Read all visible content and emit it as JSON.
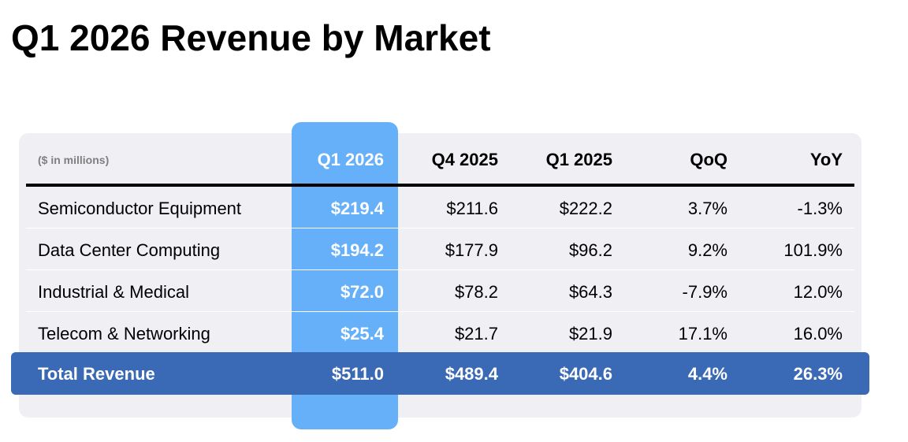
{
  "title": "Q1 2026 Revenue by Market",
  "chart_data": {
    "type": "table",
    "title": "Q1 2026 Revenue by Market",
    "unit_label": "($ in millions)",
    "highlighted_column": "Q1 2026",
    "columns": [
      "Q1 2026",
      "Q4 2025",
      "Q1 2025",
      "QoQ",
      "YoY"
    ],
    "rows": [
      {
        "label": "Semiconductor Equipment",
        "values": [
          "$219.4",
          "$211.6",
          "$222.2",
          "3.7%",
          "-1.3%"
        ]
      },
      {
        "label": "Data Center Computing",
        "values": [
          "$194.2",
          "$177.9",
          "$96.2",
          "9.2%",
          "101.9%"
        ]
      },
      {
        "label": "Industrial & Medical",
        "values": [
          "$72.0",
          "$78.2",
          "$64.3",
          "-7.9%",
          "12.0%"
        ]
      },
      {
        "label": "Telecom & Networking",
        "values": [
          "$25.4",
          "$21.7",
          "$21.9",
          "17.1%",
          "16.0%"
        ]
      }
    ],
    "total": {
      "label": "Total Revenue",
      "values": [
        "$511.0",
        "$489.4",
        "$404.6",
        "4.4%",
        "26.3%"
      ]
    }
  },
  "colors": {
    "highlight_column": "#66b0fa",
    "total_row": "#3a69b5",
    "table_background": "#f0eff4",
    "unit_label": "#7f7f7f"
  }
}
